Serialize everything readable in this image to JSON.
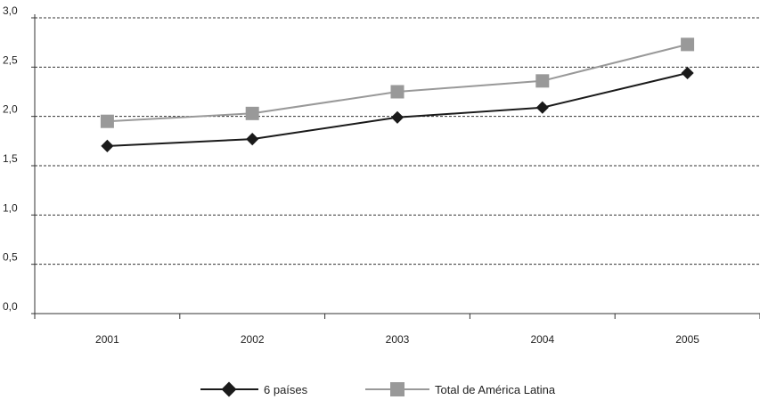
{
  "chart_data": {
    "type": "line",
    "categories": [
      "2001",
      "2002",
      "2003",
      "2004",
      "2005"
    ],
    "y_tick_labels": [
      "0,0",
      "0,5",
      "1,0",
      "1,5",
      "2,0",
      "2,5",
      "3,0"
    ],
    "ylim": [
      0,
      3
    ],
    "grid": true,
    "legend_position": "bottom-center",
    "series": [
      {
        "name": "6 países",
        "values": [
          1.7,
          1.77,
          1.99,
          2.09,
          2.44
        ],
        "color": "#1a1a1a",
        "marker": "diamond"
      },
      {
        "name": "Total de América Latina",
        "values": [
          1.95,
          2.03,
          2.25,
          2.36,
          2.73
        ],
        "color": "#999999",
        "marker": "square"
      }
    ]
  }
}
